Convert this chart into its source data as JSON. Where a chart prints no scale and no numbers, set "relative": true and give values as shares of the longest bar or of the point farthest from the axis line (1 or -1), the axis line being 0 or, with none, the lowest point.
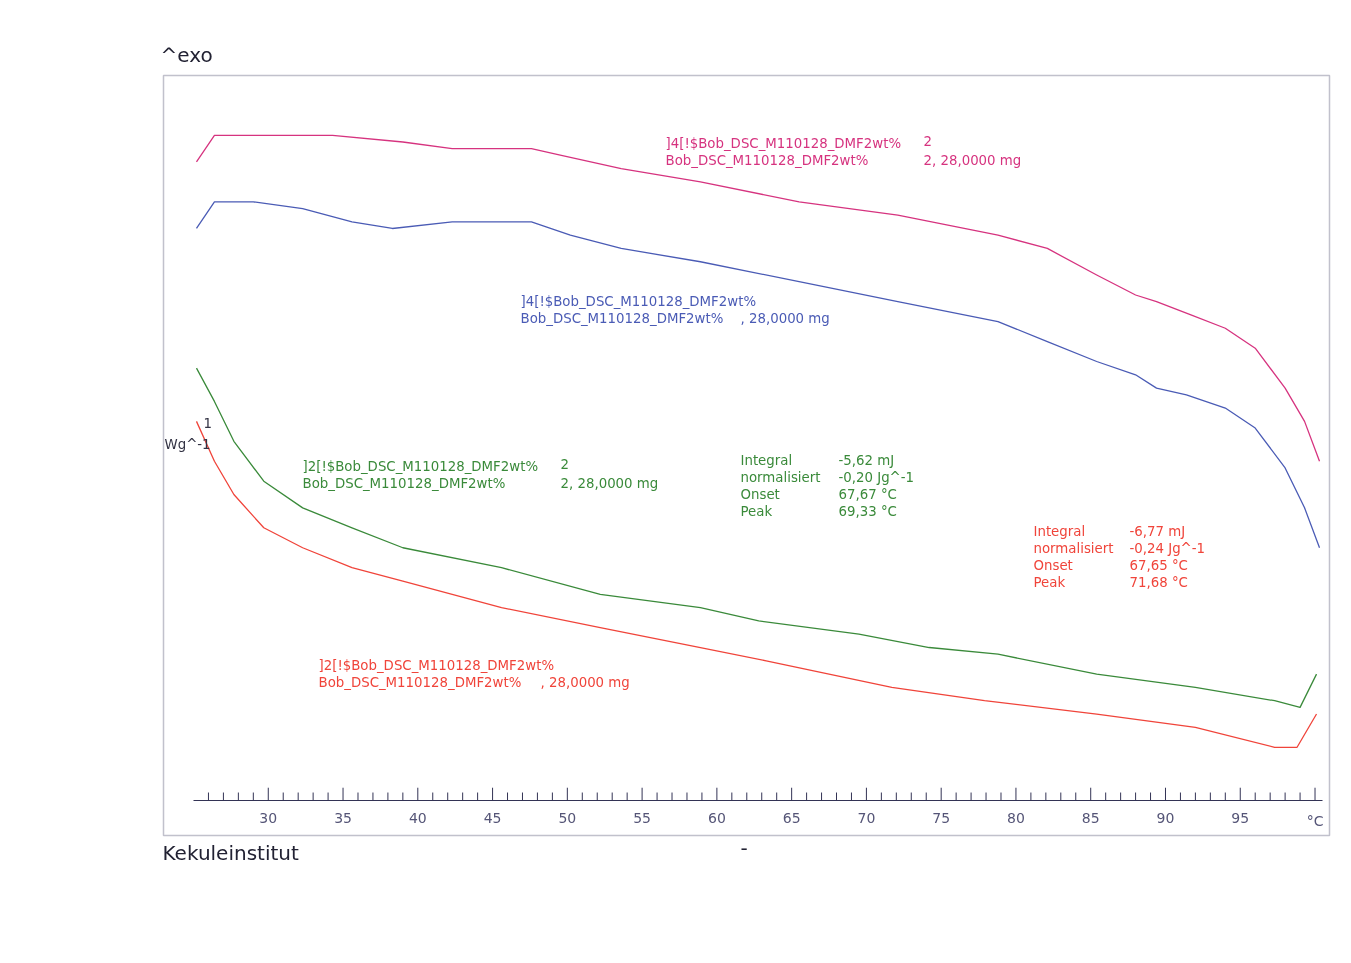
{
  "chart_data": {
    "type": "line",
    "title": "^exo",
    "ylabel": "Wg^-1",
    "relative": true,
    "grid": false,
    "legend": false,
    "tick_labels": "x",
    "xlim": [
      25,
      100.5
    ],
    "xticks": [
      30,
      35,
      40,
      45,
      50,
      55,
      60,
      65,
      70,
      75,
      80,
      85,
      90,
      95,
      {
        "value": 100,
        "label": "°C"
      },
      {
        "value": 26,
        "label": null
      },
      {
        "value": 27,
        "label": null
      },
      {
        "value": 28,
        "label": null
      },
      {
        "value": 29,
        "label": null
      },
      {
        "value": 31,
        "label": null
      },
      {
        "value": 32,
        "label": null
      },
      {
        "value": 33,
        "label": null
      },
      {
        "value": 34,
        "label": null
      },
      {
        "value": 36,
        "label": null
      },
      {
        "value": 37,
        "label": null
      },
      {
        "value": 38,
        "label": null
      },
      {
        "value": 39,
        "label": null
      },
      {
        "value": 41,
        "label": null
      },
      {
        "value": 42,
        "label": null
      },
      {
        "value": 43,
        "label": null
      },
      {
        "value": 44,
        "label": null
      },
      {
        "value": 46,
        "label": null
      },
      {
        "value": 47,
        "label": null
      },
      {
        "value": 48,
        "label": null
      },
      {
        "value": 49,
        "label": null
      },
      {
        "value": 51,
        "label": null
      },
      {
        "value": 52,
        "label": null
      },
      {
        "value": 53,
        "label": null
      },
      {
        "value": 54,
        "label": null
      },
      {
        "value": 56,
        "label": null
      },
      {
        "value": 57,
        "label": null
      },
      {
        "value": 58,
        "label": null
      },
      {
        "value": 59,
        "label": null
      },
      {
        "value": 61,
        "label": null
      },
      {
        "value": 62,
        "label": null
      },
      {
        "value": 63,
        "label": null
      },
      {
        "value": 64,
        "label": null
      },
      {
        "value": 66,
        "label": null
      },
      {
        "value": 67,
        "label": null
      },
      {
        "value": 68,
        "label": null
      },
      {
        "value": 69,
        "label": null
      },
      {
        "value": 71,
        "label": null
      },
      {
        "value": 72,
        "label": null
      },
      {
        "value": 73,
        "label": null
      },
      {
        "value": 74,
        "label": null
      },
      {
        "value": 76,
        "label": null
      },
      {
        "value": 77,
        "label": null
      },
      {
        "value": 78,
        "label": null
      },
      {
        "value": 79,
        "label": null
      },
      {
        "value": 81,
        "label": null
      },
      {
        "value": 82,
        "label": null
      },
      {
        "value": 83,
        "label": null
      },
      {
        "value": 84,
        "label": null
      },
      {
        "value": 86,
        "label": null
      },
      {
        "value": 87,
        "label": null
      },
      {
        "value": 88,
        "label": null
      },
      {
        "value": 89,
        "label": null
      },
      {
        "value": 91,
        "label": null
      },
      {
        "value": 92,
        "label": null
      },
      {
        "value": 93,
        "label": null
      },
      {
        "value": 94,
        "label": null
      },
      {
        "value": 96,
        "label": null
      },
      {
        "value": 97,
        "label": null
      },
      {
        "value": 98,
        "label": null
      },
      {
        "value": 99,
        "label": null
      }
    ],
    "series": [
      {
        "name": "]4[!$Bob_DSC_M110128_DMF2wt%\t2\nBob_DSC_M110128_DMF2wt%\t2, 28,0000 mg",
        "color": "#d6337f",
        "x": [
          25.2,
          26.4,
          29.7,
          34.3,
          39.0,
          42.3,
          44.9,
          47.6,
          49.6,
          53.6,
          58.9,
          65.5,
          72.1,
          78.8,
          82.1,
          85.4,
          88.0,
          89.4,
          91.7,
          94.0,
          96.0,
          98.0,
          99.3,
          100.3
        ],
        "values": [
          0.96,
          1.0,
          1.0,
          1.0,
          0.99,
          0.98,
          0.98,
          0.98,
          0.97,
          0.95,
          0.93,
          0.9,
          0.88,
          0.85,
          0.83,
          0.79,
          0.76,
          0.75,
          0.73,
          0.71,
          0.68,
          0.62,
          0.57,
          0.51
        ]
      },
      {
        "name": "]4[!$Bob_DSC_M110128_DMF2wt%\nBob_DSC_M110128_DMF2wt%\t, 28,0000 mg",
        "color": "#4a5bb5",
        "x": [
          25.2,
          26.4,
          29.0,
          32.3,
          35.6,
          38.3,
          42.3,
          47.6,
          50.2,
          53.6,
          58.9,
          65.5,
          72.1,
          78.8,
          82.1,
          85.4,
          88.0,
          89.4,
          91.4,
          94.0,
          96.0,
          98.0,
          99.3,
          100.3
        ],
        "values": [
          0.86,
          0.9,
          0.9,
          0.89,
          0.87,
          0.86,
          0.87,
          0.87,
          0.85,
          0.83,
          0.81,
          0.78,
          0.75,
          0.72,
          0.69,
          0.66,
          0.64,
          0.62,
          0.61,
          0.59,
          0.56,
          0.5,
          0.44,
          0.38
        ]
      },
      {
        "name": "]2[!$Bob_DSC_M110128_DMF2wt%\t2\nBob_DSC_M110128_DMF2wt%\t2, 28,0000 mg",
        "color": "#3a8a3a",
        "x": [
          25.2,
          26.4,
          27.7,
          29.7,
          32.3,
          35.6,
          39.0,
          45.6,
          52.2,
          58.9,
          62.8,
          69.5,
          74.2,
          78.8,
          85.4,
          92.0,
          97.3,
          99.0,
          100.1
        ],
        "values": [
          0.65,
          0.6,
          0.54,
          0.48,
          0.44,
          0.41,
          0.38,
          0.35,
          0.31,
          0.29,
          0.27,
          0.25,
          0.23,
          0.22,
          0.19,
          0.17,
          0.15,
          0.14,
          0.19
        ]
      },
      {
        "name": "]2[!$Bob_DSC_M110128_DMF2wt%\nBob_DSC_M110128_DMF2wt%\t, 28,0000 mg",
        "color": "#f0443a",
        "x": [
          25.2,
          26.4,
          27.7,
          29.7,
          32.3,
          35.6,
          39.0,
          45.6,
          52.2,
          58.9,
          63.3,
          71.7,
          77.9,
          85.4,
          92.0,
          97.3,
          98.8,
          100.1
        ],
        "values": [
          0.57,
          0.51,
          0.46,
          0.41,
          0.38,
          0.35,
          0.33,
          0.29,
          0.26,
          0.23,
          0.21,
          0.17,
          0.15,
          0.13,
          0.11,
          0.08,
          0.08,
          0.13
        ]
      }
    ],
    "annotations": [
      "Integral\t-5,62 mJ\n  normalisiert\t-0,20 Jg^-1\nOnset\t67,67 °C\nPeak\t69,33 °C",
      "Integral\t-6,77 mJ\n  normalisiert\t-0,24 Jg^-1\nOnset\t67,65 °C\nPeak\t71,68 °C",
      "1",
      "Kekuleinstitut",
      "-"
    ]
  }
}
